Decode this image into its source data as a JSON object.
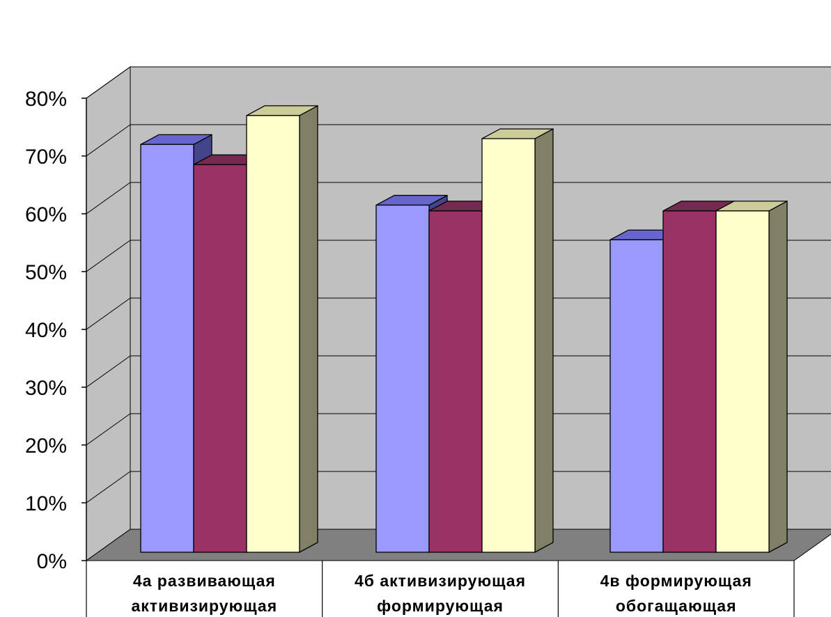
{
  "chart_data": {
    "type": "bar",
    "title": "",
    "xlabel": "",
    "ylabel": "",
    "ylim": [
      0,
      80
    ],
    "y_ticks": [
      "0%",
      "10%",
      "20%",
      "30%",
      "40%",
      "50%",
      "60%",
      "70%",
      "80%"
    ],
    "grid": true,
    "legend": "none",
    "categories": [
      [
        "4а развивающая",
        "активизирующая"
      ],
      [
        "4б активизирующая",
        "формирующая"
      ],
      [
        "4в формирующая",
        "обогащающая"
      ]
    ],
    "series": [
      {
        "values": [
          72,
          61.5,
          55.5
        ],
        "colors": {
          "front": "#9999ff",
          "top": "#6666cc",
          "side": "#44448a"
        }
      },
      {
        "values": [
          68.5,
          60.5,
          60.5
        ],
        "colors": {
          "front": "#993366",
          "top": "#772a50",
          "side": "#5a1e3c"
        }
      },
      {
        "values": [
          77,
          73,
          60.5
        ],
        "colors": {
          "front": "#ffffcc",
          "top": "#cccc99",
          "side": "#808066"
        }
      }
    ],
    "colors": {
      "back_wall": "#c0c0c0",
      "side_wall": "#c0c0c0",
      "floor": "#808080",
      "gridline": "#000000"
    }
  }
}
